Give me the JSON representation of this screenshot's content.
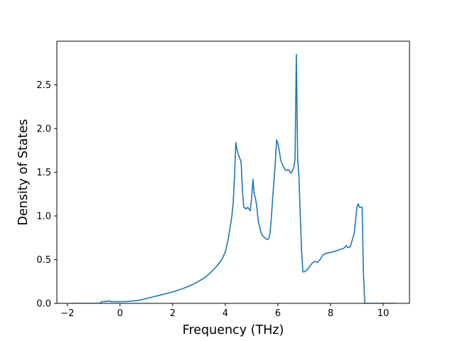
{
  "chart_data": {
    "type": "line",
    "title": "",
    "xlabel": "Frequency (THz)",
    "ylabel": "Density of States",
    "xlim": [
      -2.4,
      11.0
    ],
    "ylim": [
      0.0,
      3.0
    ],
    "xticks": [
      -2,
      0,
      2,
      4,
      6,
      8,
      10
    ],
    "yticks": [
      0.0,
      0.5,
      1.0,
      1.5,
      2.0,
      2.5
    ],
    "grid": false,
    "legend": "none",
    "series": [
      {
        "color": "#1f77b4",
        "x": [
          -1.85,
          -1.5,
          -1.0,
          -0.75,
          -0.7,
          -0.6,
          -0.55,
          -0.5,
          -0.45,
          -0.4,
          -0.35,
          -0.3,
          -0.2,
          0.0,
          0.2,
          0.4,
          0.6,
          0.8,
          1.0,
          1.2,
          1.4,
          1.6,
          1.8,
          2.0,
          2.2,
          2.4,
          2.6,
          2.8,
          3.0,
          3.2,
          3.4,
          3.6,
          3.8,
          3.9,
          4.0,
          4.05,
          4.1,
          4.2,
          4.25,
          4.3,
          4.35,
          4.4,
          4.45,
          4.5,
          4.6,
          4.65,
          4.7,
          4.8,
          4.85,
          4.9,
          4.95,
          5.0,
          5.05,
          5.1,
          5.15,
          5.2,
          5.25,
          5.3,
          5.35,
          5.4,
          5.5,
          5.6,
          5.65,
          5.7,
          5.75,
          5.8,
          5.85,
          5.9,
          5.95,
          6.0,
          6.05,
          6.1,
          6.15,
          6.2,
          6.25,
          6.3,
          6.4,
          6.5,
          6.6,
          6.65,
          6.7,
          6.75,
          6.8,
          6.85,
          6.9,
          6.95,
          7.0,
          7.05,
          7.1,
          7.15,
          7.2,
          7.3,
          7.4,
          7.5,
          7.6,
          7.7,
          7.8,
          7.85,
          7.9,
          7.95,
          8.0,
          8.1,
          8.2,
          8.3,
          8.4,
          8.5,
          8.6,
          8.65,
          8.7,
          8.75,
          8.8,
          8.85,
          8.9,
          9.0,
          9.05,
          9.1,
          9.15,
          9.2,
          9.25,
          9.3,
          9.35,
          9.4,
          9.45,
          9.5,
          10.0,
          10.45
        ],
        "y": [
          0.0,
          0.0,
          0.0,
          0.0,
          0.02,
          0.02,
          0.025,
          0.02,
          0.025,
          0.03,
          0.02,
          0.02,
          0.02,
          0.02,
          0.02,
          0.025,
          0.03,
          0.04,
          0.055,
          0.07,
          0.085,
          0.1,
          0.115,
          0.13,
          0.15,
          0.17,
          0.195,
          0.22,
          0.255,
          0.29,
          0.34,
          0.4,
          0.47,
          0.52,
          0.59,
          0.65,
          0.72,
          0.9,
          1.0,
          1.15,
          1.45,
          1.84,
          1.75,
          1.7,
          1.62,
          1.3,
          1.1,
          1.08,
          1.1,
          1.08,
          1.06,
          1.2,
          1.42,
          1.25,
          1.2,
          1.1,
          0.95,
          0.88,
          0.82,
          0.78,
          0.75,
          0.73,
          0.74,
          0.8,
          0.98,
          1.2,
          1.4,
          1.6,
          1.87,
          1.83,
          1.75,
          1.65,
          1.6,
          1.57,
          1.54,
          1.52,
          1.53,
          1.49,
          1.55,
          1.65,
          2.85,
          1.65,
          1.45,
          1.0,
          0.6,
          0.36,
          0.36,
          0.37,
          0.38,
          0.4,
          0.42,
          0.46,
          0.48,
          0.47,
          0.5,
          0.55,
          0.57,
          0.57,
          0.58,
          0.58,
          0.58,
          0.59,
          0.6,
          0.61,
          0.62,
          0.63,
          0.66,
          0.64,
          0.64,
          0.65,
          0.7,
          0.75,
          0.8,
          1.1,
          1.14,
          1.1,
          1.1,
          1.1,
          0.35,
          0.0,
          0.0,
          0.0,
          0.0,
          0.0,
          0.0,
          0.0
        ]
      }
    ]
  }
}
